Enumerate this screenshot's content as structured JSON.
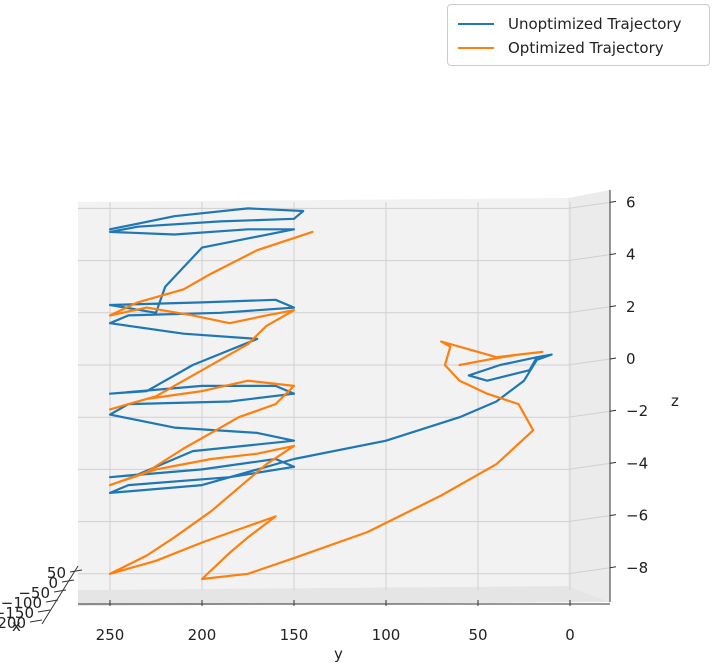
{
  "chart_data": {
    "type": "line",
    "projection": "3d",
    "zlabel": "z",
    "ylabel": "y",
    "xlabel": "x",
    "z_ticks": [
      "6",
      "4",
      "2",
      "0",
      "−2",
      "−4",
      "−6",
      "−8"
    ],
    "y_ticks": [
      "250",
      "200",
      "150",
      "100",
      "50",
      "0"
    ],
    "x_ticks": [
      "50",
      "0",
      "−50",
      "−100",
      "−150",
      "−200"
    ],
    "legend": "top-right",
    "grid": true,
    "series": [
      {
        "name": "Unoptimized Trajectory",
        "color": "#1f77b4",
        "points": [
          [
            250,
            5.2
          ],
          [
            215,
            5.7
          ],
          [
            175,
            6.0
          ],
          [
            145,
            5.9
          ],
          [
            150,
            5.6
          ],
          [
            190,
            5.5
          ],
          [
            235,
            5.3
          ],
          [
            250,
            5.1
          ],
          [
            215,
            5.0
          ],
          [
            175,
            5.2
          ],
          [
            150,
            5.2
          ],
          [
            200,
            4.5
          ],
          [
            220,
            3.0
          ],
          [
            225,
            2.0
          ],
          [
            250,
            2.3
          ],
          [
            200,
            2.4
          ],
          [
            160,
            2.5
          ],
          [
            150,
            2.2
          ],
          [
            190,
            2.0
          ],
          [
            240,
            1.9
          ],
          [
            250,
            1.6
          ],
          [
            210,
            1.2
          ],
          [
            170,
            1.0
          ],
          [
            205,
            0.0
          ],
          [
            230,
            -1.0
          ],
          [
            250,
            -1.1
          ],
          [
            200,
            -0.8
          ],
          [
            160,
            -0.8
          ],
          [
            150,
            -1.1
          ],
          [
            185,
            -1.4
          ],
          [
            240,
            -1.5
          ],
          [
            250,
            -1.9
          ],
          [
            215,
            -2.4
          ],
          [
            170,
            -2.6
          ],
          [
            150,
            -2.9
          ],
          [
            205,
            -3.3
          ],
          [
            235,
            -4.2
          ],
          [
            250,
            -4.3
          ],
          [
            200,
            -4.0
          ],
          [
            160,
            -3.6
          ],
          [
            150,
            -3.9
          ],
          [
            185,
            -4.3
          ],
          [
            240,
            -4.6
          ],
          [
            250,
            -4.9
          ],
          [
            200,
            -4.6
          ],
          [
            150,
            -3.6
          ],
          [
            100,
            -2.9
          ],
          [
            60,
            -2.0
          ],
          [
            40,
            -1.4
          ],
          [
            25,
            -0.6
          ],
          [
            18,
            0.2
          ],
          [
            10,
            0.4
          ],
          [
            18,
            0.3
          ],
          [
            38,
            0.0
          ],
          [
            55,
            -0.4
          ],
          [
            45,
            -0.6
          ],
          [
            22,
            -0.2
          ],
          [
            18,
            0.3
          ]
        ]
      },
      {
        "name": "Optimized Trajectory",
        "color": "#ff7f0e",
        "points": [
          [
            140,
            5.1
          ],
          [
            170,
            4.4
          ],
          [
            195,
            3.5
          ],
          [
            210,
            2.9
          ],
          [
            235,
            2.4
          ],
          [
            250,
            1.9
          ],
          [
            230,
            2.2
          ],
          [
            205,
            1.9
          ],
          [
            185,
            1.6
          ],
          [
            165,
            1.9
          ],
          [
            150,
            2.1
          ],
          [
            165,
            1.5
          ],
          [
            175,
            0.8
          ],
          [
            190,
            0.2
          ],
          [
            205,
            -0.4
          ],
          [
            225,
            -1.2
          ],
          [
            250,
            -1.7
          ],
          [
            230,
            -1.3
          ],
          [
            200,
            -1.0
          ],
          [
            175,
            -0.6
          ],
          [
            150,
            -0.8
          ],
          [
            160,
            -1.5
          ],
          [
            180,
            -2.0
          ],
          [
            195,
            -2.6
          ],
          [
            210,
            -3.2
          ],
          [
            230,
            -4.1
          ],
          [
            250,
            -4.6
          ],
          [
            225,
            -4.0
          ],
          [
            195,
            -3.6
          ],
          [
            170,
            -3.4
          ],
          [
            150,
            -3.1
          ],
          [
            165,
            -3.8
          ],
          [
            180,
            -4.7
          ],
          [
            195,
            -5.6
          ],
          [
            215,
            -6.6
          ],
          [
            230,
            -7.3
          ],
          [
            250,
            -8.0
          ],
          [
            225,
            -7.5
          ],
          [
            200,
            -6.8
          ],
          [
            180,
            -6.3
          ],
          [
            160,
            -5.8
          ],
          [
            175,
            -6.6
          ],
          [
            185,
            -7.2
          ],
          [
            200,
            -8.2
          ],
          [
            175,
            -8.0
          ],
          [
            150,
            -7.4
          ],
          [
            110,
            -6.4
          ],
          [
            70,
            -5.0
          ],
          [
            40,
            -3.8
          ],
          [
            20,
            -2.5
          ],
          [
            28,
            -1.5
          ],
          [
            45,
            -1.1
          ],
          [
            60,
            -0.6
          ],
          [
            68,
            0.0
          ],
          [
            65,
            0.7
          ],
          [
            70,
            0.9
          ],
          [
            55,
            0.6
          ],
          [
            40,
            0.3
          ],
          [
            28,
            0.4
          ],
          [
            15,
            0.5
          ],
          [
            28,
            0.4
          ],
          [
            45,
            0.2
          ],
          [
            60,
            0.0
          ]
        ]
      }
    ]
  }
}
